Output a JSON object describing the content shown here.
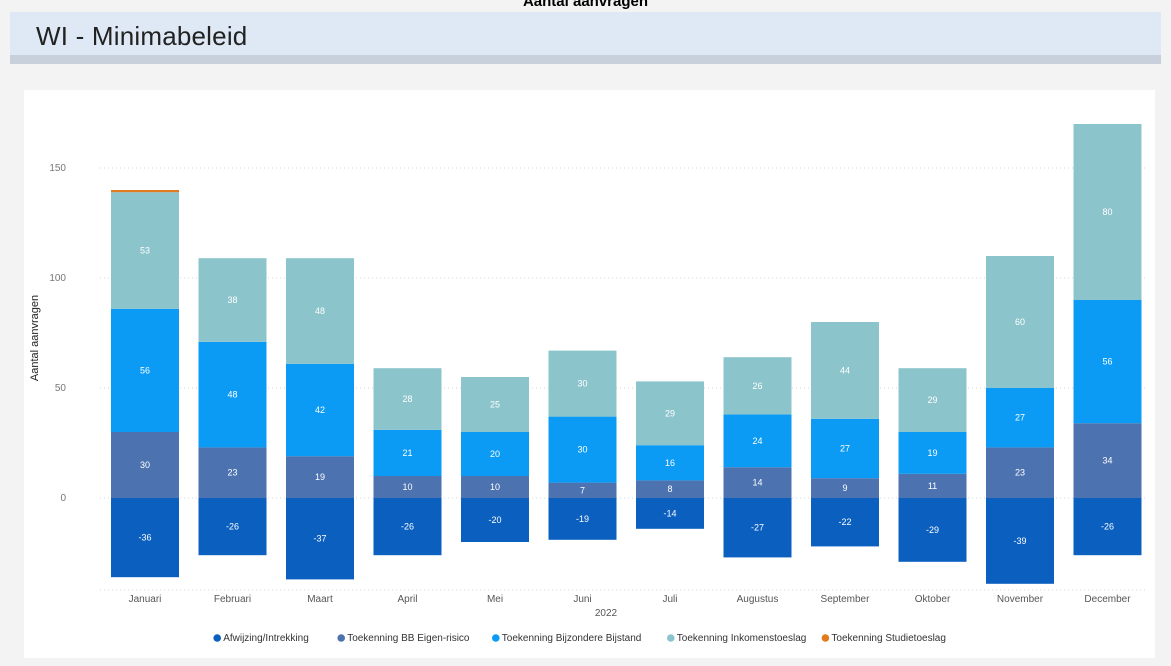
{
  "top_title": "Aantal aanvragen",
  "header": {
    "title": "WI - Minimabeleid"
  },
  "chart_data": {
    "type": "bar",
    "stacked": true,
    "categories": [
      "Januari",
      "Februari",
      "Maart",
      "April",
      "Mei",
      "Juni",
      "Juli",
      "Augustus",
      "September",
      "Oktober",
      "November",
      "December"
    ],
    "xlabel": "2022",
    "ylabel": "Aantal aanvragen",
    "ylim": [
      -40,
      170
    ],
    "yticks": [
      0,
      50,
      100,
      150
    ],
    "grid": true,
    "legend_position": "bottom",
    "series": [
      {
        "name": "Afwijzing/Intrekking",
        "color": "#0b5fbf",
        "values": [
          -36,
          -26,
          -37,
          -26,
          -20,
          -19,
          -14,
          -27,
          -22,
          -29,
          -39,
          -26
        ]
      },
      {
        "name": "Toekenning BB Eigen-risico",
        "color": "#4c72b0",
        "values": [
          30,
          23,
          19,
          10,
          10,
          7,
          8,
          14,
          9,
          11,
          23,
          34
        ]
      },
      {
        "name": "Toekenning Bijzondere Bijstand",
        "color": "#0b9bf5",
        "values": [
          56,
          48,
          42,
          21,
          20,
          30,
          16,
          24,
          27,
          19,
          27,
          56
        ]
      },
      {
        "name": "Toekenning Inkomenstoeslag",
        "color": "#8cc4cb",
        "values": [
          53,
          38,
          48,
          28,
          25,
          30,
          29,
          26,
          44,
          29,
          60,
          80
        ]
      },
      {
        "name": "Toekenning Studietoeslag",
        "color": "#e07b1f",
        "values": [
          1,
          0,
          0,
          0,
          0,
          0,
          0,
          0,
          0,
          0,
          0,
          0
        ]
      }
    ]
  }
}
